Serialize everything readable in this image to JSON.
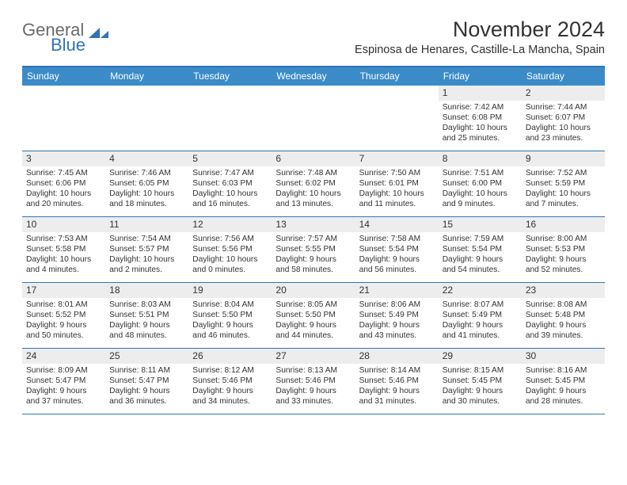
{
  "brand": {
    "line1": "General",
    "line2": "Blue"
  },
  "title": "November 2024",
  "subtitle": "Espinosa de Henares, Castille-La Mancha, Spain",
  "colors": {
    "header_bg": "#3b8bc9",
    "border": "#2f75b5",
    "daynum_bg": "#ededed",
    "text": "#333333",
    "logo_gray": "#6b6b6b",
    "logo_blue": "#2f75b5"
  },
  "weekdays": [
    "Sunday",
    "Monday",
    "Tuesday",
    "Wednesday",
    "Thursday",
    "Friday",
    "Saturday"
  ],
  "weeks": [
    [
      {
        "n": "",
        "t": ""
      },
      {
        "n": "",
        "t": ""
      },
      {
        "n": "",
        "t": ""
      },
      {
        "n": "",
        "t": ""
      },
      {
        "n": "",
        "t": ""
      },
      {
        "n": "1",
        "t": "Sunrise: 7:42 AM\nSunset: 6:08 PM\nDaylight: 10 hours and 25 minutes."
      },
      {
        "n": "2",
        "t": "Sunrise: 7:44 AM\nSunset: 6:07 PM\nDaylight: 10 hours and 23 minutes."
      }
    ],
    [
      {
        "n": "3",
        "t": "Sunrise: 7:45 AM\nSunset: 6:06 PM\nDaylight: 10 hours and 20 minutes."
      },
      {
        "n": "4",
        "t": "Sunrise: 7:46 AM\nSunset: 6:05 PM\nDaylight: 10 hours and 18 minutes."
      },
      {
        "n": "5",
        "t": "Sunrise: 7:47 AM\nSunset: 6:03 PM\nDaylight: 10 hours and 16 minutes."
      },
      {
        "n": "6",
        "t": "Sunrise: 7:48 AM\nSunset: 6:02 PM\nDaylight: 10 hours and 13 minutes."
      },
      {
        "n": "7",
        "t": "Sunrise: 7:50 AM\nSunset: 6:01 PM\nDaylight: 10 hours and 11 minutes."
      },
      {
        "n": "8",
        "t": "Sunrise: 7:51 AM\nSunset: 6:00 PM\nDaylight: 10 hours and 9 minutes."
      },
      {
        "n": "9",
        "t": "Sunrise: 7:52 AM\nSunset: 5:59 PM\nDaylight: 10 hours and 7 minutes."
      }
    ],
    [
      {
        "n": "10",
        "t": "Sunrise: 7:53 AM\nSunset: 5:58 PM\nDaylight: 10 hours and 4 minutes."
      },
      {
        "n": "11",
        "t": "Sunrise: 7:54 AM\nSunset: 5:57 PM\nDaylight: 10 hours and 2 minutes."
      },
      {
        "n": "12",
        "t": "Sunrise: 7:56 AM\nSunset: 5:56 PM\nDaylight: 10 hours and 0 minutes."
      },
      {
        "n": "13",
        "t": "Sunrise: 7:57 AM\nSunset: 5:55 PM\nDaylight: 9 hours and 58 minutes."
      },
      {
        "n": "14",
        "t": "Sunrise: 7:58 AM\nSunset: 5:54 PM\nDaylight: 9 hours and 56 minutes."
      },
      {
        "n": "15",
        "t": "Sunrise: 7:59 AM\nSunset: 5:54 PM\nDaylight: 9 hours and 54 minutes."
      },
      {
        "n": "16",
        "t": "Sunrise: 8:00 AM\nSunset: 5:53 PM\nDaylight: 9 hours and 52 minutes."
      }
    ],
    [
      {
        "n": "17",
        "t": "Sunrise: 8:01 AM\nSunset: 5:52 PM\nDaylight: 9 hours and 50 minutes."
      },
      {
        "n": "18",
        "t": "Sunrise: 8:03 AM\nSunset: 5:51 PM\nDaylight: 9 hours and 48 minutes."
      },
      {
        "n": "19",
        "t": "Sunrise: 8:04 AM\nSunset: 5:50 PM\nDaylight: 9 hours and 46 minutes."
      },
      {
        "n": "20",
        "t": "Sunrise: 8:05 AM\nSunset: 5:50 PM\nDaylight: 9 hours and 44 minutes."
      },
      {
        "n": "21",
        "t": "Sunrise: 8:06 AM\nSunset: 5:49 PM\nDaylight: 9 hours and 43 minutes."
      },
      {
        "n": "22",
        "t": "Sunrise: 8:07 AM\nSunset: 5:49 PM\nDaylight: 9 hours and 41 minutes."
      },
      {
        "n": "23",
        "t": "Sunrise: 8:08 AM\nSunset: 5:48 PM\nDaylight: 9 hours and 39 minutes."
      }
    ],
    [
      {
        "n": "24",
        "t": "Sunrise: 8:09 AM\nSunset: 5:47 PM\nDaylight: 9 hours and 37 minutes."
      },
      {
        "n": "25",
        "t": "Sunrise: 8:11 AM\nSunset: 5:47 PM\nDaylight: 9 hours and 36 minutes."
      },
      {
        "n": "26",
        "t": "Sunrise: 8:12 AM\nSunset: 5:46 PM\nDaylight: 9 hours and 34 minutes."
      },
      {
        "n": "27",
        "t": "Sunrise: 8:13 AM\nSunset: 5:46 PM\nDaylight: 9 hours and 33 minutes."
      },
      {
        "n": "28",
        "t": "Sunrise: 8:14 AM\nSunset: 5:46 PM\nDaylight: 9 hours and 31 minutes."
      },
      {
        "n": "29",
        "t": "Sunrise: 8:15 AM\nSunset: 5:45 PM\nDaylight: 9 hours and 30 minutes."
      },
      {
        "n": "30",
        "t": "Sunrise: 8:16 AM\nSunset: 5:45 PM\nDaylight: 9 hours and 28 minutes."
      }
    ]
  ]
}
